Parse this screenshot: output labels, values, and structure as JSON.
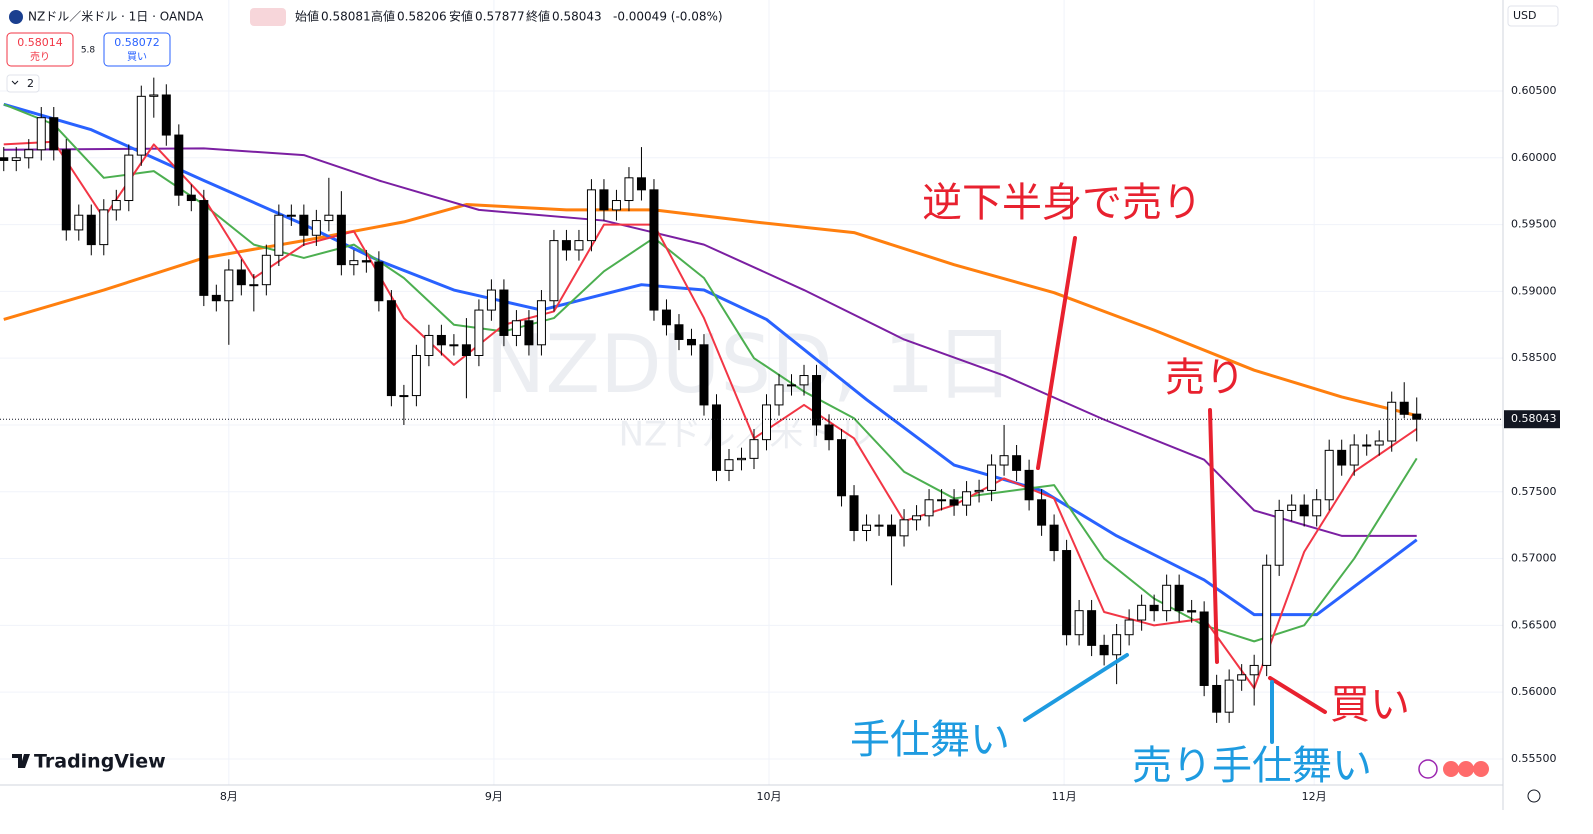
{
  "ui": {
    "symbol": "NZドル／米ドル · 1日 · OANDA",
    "open_label": "始値",
    "high_label": "高値",
    "low_label": "安値",
    "close_label": "終値",
    "change": "-0.00049 (-0.08%)",
    "sell_price": 0.58014,
    "sell_label": "売り",
    "spread": 5.8,
    "buy_price": 0.58072,
    "buy_label": "買い",
    "indicator_count": 2,
    "currency": "USD",
    "watermark": "NZDUSD, 1日",
    "watermark_sub": "NZドル／米ドル",
    "logo": "TradingView"
  },
  "chart_data": {
    "type": "candlestick",
    "xlim": [
      -0.3,
      119.9
    ],
    "ylim": [
      0.55305,
      0.61181
    ],
    "xticks": [
      {
        "value": 18,
        "label": "8月"
      },
      {
        "value": 39.2,
        "label": "9月"
      },
      {
        "value": 61.2,
        "label": "10月"
      },
      {
        "value": 84.8,
        "label": "11月"
      },
      {
        "value": 104.8,
        "label": "12月"
      }
    ],
    "yticks": [
      {
        "value": 0.605,
        "label": "0.60500"
      },
      {
        "value": 0.6,
        "label": "0.60000"
      },
      {
        "value": 0.595,
        "label": "0.59500"
      },
      {
        "value": 0.59,
        "label": "0.59000"
      },
      {
        "value": 0.585,
        "label": "0.58500"
      },
      {
        "value": 0.58,
        "label": "0.58000"
      },
      {
        "value": 0.575,
        "label": "0.57500"
      },
      {
        "value": 0.57,
        "label": "0.57000"
      },
      {
        "value": 0.565,
        "label": "0.56500"
      },
      {
        "value": 0.56,
        "label": "0.56000"
      },
      {
        "value": 0.555,
        "label": "0.55500"
      }
    ],
    "grid": true,
    "up_color": "#ffffff",
    "down_color": "#000000",
    "open": [
      0.6,
      0.5998,
      0.6,
      0.6006,
      0.603,
      0.6006,
      0.5946,
      0.5957,
      0.5935,
      0.5961,
      0.5968,
      0.6002,
      0.6046,
      0.6047,
      0.6017,
      0.5972,
      0.5968,
      0.5897,
      0.5893,
      0.5916,
      0.5905,
      0.5905,
      0.5927,
      0.5957,
      0.5957,
      0.5942,
      0.5953,
      0.5957,
      0.592,
      0.5923,
      0.5922,
      0.5893,
      0.5822,
      0.5822,
      0.5852,
      0.5867,
      0.586,
      0.586,
      0.5852,
      0.5886,
      0.5901,
      0.5867,
      0.5878,
      0.586,
      0.5893,
      0.5938,
      0.5931,
      0.5938,
      0.5976,
      0.5961,
      0.5968,
      0.5985,
      0.5976,
      0.5886,
      0.5875,
      0.5864,
      0.586,
      0.5815,
      0.5766,
      0.5774,
      0.5775,
      0.5789,
      0.5815,
      0.583,
      0.583,
      0.5837,
      0.58,
      0.5789,
      0.5747,
      0.5721,
      0.5725,
      0.5725,
      0.5717,
      0.5729,
      0.5732,
      0.5744,
      0.5744,
      0.574,
      0.575,
      0.5751,
      0.577,
      0.5777,
      0.5766,
      0.5744,
      0.5725,
      0.5706,
      0.5643,
      0.5661,
      0.5635,
      0.5628,
      0.5643,
      0.5654,
      0.5665,
      0.5661,
      0.568,
      0.5661,
      0.566,
      0.5605,
      0.5585,
      0.5609,
      0.5613,
      0.562,
      0.5695,
      0.5736,
      0.574,
      0.5732,
      0.5744,
      0.5781,
      0.577,
      0.5785,
      0.5785,
      0.5788,
      0.5817,
      0.58081
    ],
    "high": [
      0.6008,
      0.6008,
      0.6014,
      0.6038,
      0.6038,
      0.6014,
      0.5965,
      0.5965,
      0.5969,
      0.5976,
      0.601,
      0.6054,
      0.606,
      0.6055,
      0.6025,
      0.598,
      0.5976,
      0.5905,
      0.5924,
      0.5924,
      0.5913,
      0.5935,
      0.5965,
      0.5965,
      0.5965,
      0.5961,
      0.5985,
      0.5975,
      0.5931,
      0.5931,
      0.593,
      0.5901,
      0.583,
      0.586,
      0.5875,
      0.5875,
      0.5868,
      0.588,
      0.5894,
      0.5909,
      0.5909,
      0.5886,
      0.5886,
      0.5901,
      0.5946,
      0.5946,
      0.5946,
      0.5984,
      0.5984,
      0.5976,
      0.5993,
      0.6008,
      0.5984,
      0.5894,
      0.5883,
      0.5872,
      0.5868,
      0.5823,
      0.5782,
      0.5783,
      0.5797,
      0.5823,
      0.5838,
      0.5838,
      0.5845,
      0.5845,
      0.5808,
      0.5797,
      0.5755,
      0.5733,
      0.5733,
      0.5733,
      0.5737,
      0.574,
      0.5752,
      0.5752,
      0.5752,
      0.5758,
      0.5759,
      0.5778,
      0.58,
      0.5785,
      0.5774,
      0.5752,
      0.5733,
      0.5714,
      0.5669,
      0.5669,
      0.5643,
      0.5651,
      0.5662,
      0.5673,
      0.5673,
      0.5688,
      0.5688,
      0.5669,
      0.5668,
      0.5613,
      0.5617,
      0.5621,
      0.5628,
      0.5703,
      0.5744,
      0.5748,
      0.5748,
      0.5752,
      0.5789,
      0.5789,
      0.5793,
      0.5793,
      0.5796,
      0.5825,
      0.5832,
      0.58206
    ],
    "low": [
      0.599,
      0.599,
      0.5992,
      0.5998,
      0.5998,
      0.5938,
      0.5938,
      0.5927,
      0.5927,
      0.5953,
      0.596,
      0.5994,
      0.603,
      0.6009,
      0.5964,
      0.596,
      0.5889,
      0.5885,
      0.586,
      0.5897,
      0.5885,
      0.5897,
      0.5919,
      0.5949,
      0.5934,
      0.5934,
      0.5945,
      0.5912,
      0.5912,
      0.5914,
      0.5885,
      0.5814,
      0.58,
      0.5814,
      0.5844,
      0.5852,
      0.5852,
      0.582,
      0.5844,
      0.5878,
      0.5859,
      0.5859,
      0.5852,
      0.5852,
      0.5885,
      0.5923,
      0.5923,
      0.593,
      0.5953,
      0.5953,
      0.596,
      0.5968,
      0.5878,
      0.5867,
      0.5856,
      0.5852,
      0.5807,
      0.5758,
      0.5758,
      0.5766,
      0.5767,
      0.5781,
      0.5807,
      0.5822,
      0.5822,
      0.5792,
      0.5781,
      0.5739,
      0.5713,
      0.5713,
      0.5717,
      0.568,
      0.5709,
      0.5721,
      0.5724,
      0.5736,
      0.5732,
      0.5732,
      0.5742,
      0.5743,
      0.5762,
      0.5758,
      0.5736,
      0.5717,
      0.5698,
      0.5635,
      0.5635,
      0.5627,
      0.562,
      0.5606,
      0.5635,
      0.5646,
      0.5653,
      0.5653,
      0.5653,
      0.5652,
      0.5597,
      0.5577,
      0.5577,
      0.5601,
      0.559,
      0.5612,
      0.5687,
      0.5728,
      0.5724,
      0.5724,
      0.5736,
      0.5762,
      0.5762,
      0.5777,
      0.5777,
      0.578,
      0.5805,
      0.57877
    ],
    "close": [
      0.5998,
      0.6,
      0.6006,
      0.603,
      0.6006,
      0.5946,
      0.5957,
      0.5935,
      0.5961,
      0.5968,
      0.6002,
      0.6046,
      0.6047,
      0.6017,
      0.5972,
      0.5968,
      0.5897,
      0.5893,
      0.5916,
      0.5905,
      0.5905,
      0.5927,
      0.5957,
      0.5957,
      0.5942,
      0.5953,
      0.5957,
      0.592,
      0.5923,
      0.5922,
      0.5893,
      0.5822,
      0.5822,
      0.5852,
      0.5867,
      0.586,
      0.586,
      0.5852,
      0.5886,
      0.5901,
      0.5867,
      0.5878,
      0.586,
      0.5893,
      0.5938,
      0.5931,
      0.5938,
      0.5976,
      0.5961,
      0.5968,
      0.5985,
      0.5976,
      0.5886,
      0.5875,
      0.5864,
      0.586,
      0.5815,
      0.5766,
      0.5774,
      0.5775,
      0.5789,
      0.5815,
      0.583,
      0.583,
      0.5837,
      0.58,
      0.5789,
      0.5747,
      0.5721,
      0.5725,
      0.5725,
      0.5717,
      0.5729,
      0.5732,
      0.5744,
      0.5744,
      0.574,
      0.575,
      0.5751,
      0.577,
      0.5777,
      0.5766,
      0.5744,
      0.5725,
      0.5706,
      0.5643,
      0.5661,
      0.5635,
      0.5628,
      0.5643,
      0.5654,
      0.5665,
      0.5661,
      0.568,
      0.5661,
      0.566,
      0.5605,
      0.5585,
      0.5609,
      0.5613,
      0.562,
      0.5695,
      0.5736,
      0.574,
      0.5732,
      0.5744,
      0.5781,
      0.577,
      0.5785,
      0.5785,
      0.5788,
      0.5817,
      0.5808,
      0.58043
    ],
    "overlays": [
      {
        "type": "line",
        "color": "#ff7f0e",
        "x": [
          0,
          8,
          16,
          24,
          32,
          37,
          45,
          52,
          60,
          68,
          76,
          84,
          92,
          100,
          107,
          113
        ],
        "values": [
          0.5879,
          0.5901,
          0.5925,
          0.5938,
          0.5952,
          0.5965,
          0.5961,
          0.5961,
          0.5952,
          0.5944,
          0.592,
          0.5899,
          0.5871,
          0.5841,
          0.5821,
          0.5807
        ]
      },
      {
        "type": "line",
        "color": "#7b1fa2",
        "x": [
          0,
          16,
          24,
          30,
          38,
          48,
          56,
          64,
          72,
          80,
          88,
          96,
          100,
          107,
          113
        ],
        "values": [
          0.6006,
          0.6007,
          0.6002,
          0.5983,
          0.5961,
          0.5953,
          0.5935,
          0.5901,
          0.5864,
          0.5837,
          0.5804,
          0.5774,
          0.5736,
          0.5717,
          0.5717
        ]
      },
      {
        "type": "line",
        "color": "#2962ff",
        "x": [
          0,
          7,
          16,
          24,
          30,
          36,
          43,
          51,
          56,
          61,
          69,
          76,
          83,
          89,
          96,
          100,
          105,
          113
        ],
        "values": [
          0.604,
          0.6021,
          0.5983,
          0.595,
          0.5923,
          0.5901,
          0.5886,
          0.5905,
          0.5901,
          0.5879,
          0.5819,
          0.577,
          0.5751,
          0.5717,
          0.5684,
          0.5658,
          0.5658,
          0.5714
        ]
      },
      {
        "type": "line",
        "color": "#4caf50",
        "x": [
          0,
          4,
          8,
          12,
          16,
          20,
          24,
          28,
          32,
          36,
          40,
          44,
          48,
          52,
          56,
          60,
          64,
          68,
          72,
          76,
          80,
          84,
          88,
          92,
          96,
          100,
          104,
          108,
          113
        ],
        "values": [
          0.604,
          0.6025,
          0.5985,
          0.599,
          0.5965,
          0.5935,
          0.5925,
          0.5935,
          0.591,
          0.5875,
          0.587,
          0.588,
          0.5915,
          0.594,
          0.591,
          0.585,
          0.5825,
          0.5805,
          0.5765,
          0.5745,
          0.575,
          0.5755,
          0.57,
          0.567,
          0.565,
          0.5638,
          0.565,
          0.57,
          0.5775
        ]
      },
      {
        "type": "line",
        "color": "#f23645",
        "x": [
          0,
          4,
          8,
          12,
          16,
          20,
          24,
          28,
          32,
          36,
          40,
          44,
          48,
          52,
          56,
          60,
          64,
          68,
          72,
          76,
          80,
          84,
          88,
          92,
          96,
          100,
          104,
          108,
          113
        ],
        "values": [
          0.601,
          0.6012,
          0.5955,
          0.601,
          0.597,
          0.591,
          0.5935,
          0.5945,
          0.588,
          0.5845,
          0.5875,
          0.5885,
          0.595,
          0.595,
          0.588,
          0.579,
          0.5815,
          0.579,
          0.5728,
          0.574,
          0.576,
          0.5745,
          0.566,
          0.565,
          0.5655,
          0.5603,
          0.5705,
          0.5765,
          0.5797
        ]
      }
    ],
    "annotations": [
      {
        "text": "逆下半身で売り",
        "color": "#e8212f"
      },
      {
        "text": "売り",
        "color": "#e8212f"
      },
      {
        "text": "買い",
        "color": "#e8212f"
      },
      {
        "text": "手仕舞い",
        "color": "#1e9be0"
      },
      {
        "text": "売り手仕舞い",
        "color": "#1e9be0"
      }
    ]
  }
}
